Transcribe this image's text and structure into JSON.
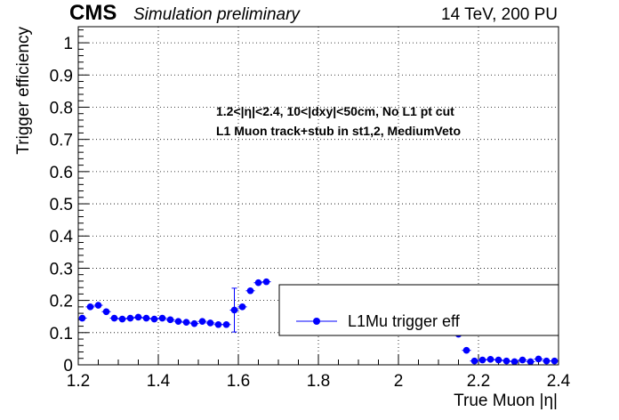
{
  "header": {
    "experiment": "CMS",
    "subtitle": "Simulation preliminary",
    "conditions": "14 TeV, 200 PU"
  },
  "annotations": [
    "1.2<|η|<2.4, 10<|dxy|<50cm, No L1 pt cut",
    "L1 Muon track+stub in st1,2, MediumVeto"
  ],
  "chart_data": {
    "type": "scatter",
    "xlabel": "True Muon |η|",
    "ylabel": "Trigger efficiency",
    "xlim": [
      1.2,
      2.4
    ],
    "ylim": [
      0,
      1.05
    ],
    "grid": true,
    "x_ticks": [
      "1.2",
      "1.4",
      "1.6",
      "1.8",
      "2",
      "2.2",
      "2.4"
    ],
    "y_ticks": [
      "0",
      "0.1",
      "0.2",
      "0.3",
      "0.4",
      "0.5",
      "0.6",
      "0.7",
      "0.8",
      "0.9",
      "1"
    ],
    "legend": {
      "placement": "lower-right",
      "entries": [
        "L1Mu trigger eff"
      ]
    },
    "series": [
      {
        "name": "L1Mu trigger eff",
        "color": "#0000ff",
        "points": [
          {
            "x": 1.21,
            "y": 0.145,
            "err": 0.008
          },
          {
            "x": 1.23,
            "y": 0.18,
            "err": 0.008
          },
          {
            "x": 1.25,
            "y": 0.185,
            "err": 0.008
          },
          {
            "x": 1.27,
            "y": 0.165,
            "err": 0.008
          },
          {
            "x": 1.29,
            "y": 0.145,
            "err": 0.008
          },
          {
            "x": 1.31,
            "y": 0.142,
            "err": 0.008
          },
          {
            "x": 1.33,
            "y": 0.145,
            "err": 0.008
          },
          {
            "x": 1.35,
            "y": 0.148,
            "err": 0.008
          },
          {
            "x": 1.37,
            "y": 0.145,
            "err": 0.008
          },
          {
            "x": 1.39,
            "y": 0.142,
            "err": 0.008
          },
          {
            "x": 1.41,
            "y": 0.145,
            "err": 0.008
          },
          {
            "x": 1.43,
            "y": 0.14,
            "err": 0.008
          },
          {
            "x": 1.45,
            "y": 0.135,
            "err": 0.008
          },
          {
            "x": 1.47,
            "y": 0.132,
            "err": 0.008
          },
          {
            "x": 1.49,
            "y": 0.128,
            "err": 0.008
          },
          {
            "x": 1.51,
            "y": 0.135,
            "err": 0.008
          },
          {
            "x": 1.53,
            "y": 0.13,
            "err": 0.008
          },
          {
            "x": 1.55,
            "y": 0.125,
            "err": 0.008
          },
          {
            "x": 1.57,
            "y": 0.125,
            "err": 0.008
          },
          {
            "x": 1.59,
            "y": 0.17,
            "err": 0.068
          },
          {
            "x": 1.61,
            "y": 0.18,
            "err": 0.008
          },
          {
            "x": 1.63,
            "y": 0.23,
            "err": 0.008
          },
          {
            "x": 1.65,
            "y": 0.255,
            "err": 0.008
          },
          {
            "x": 1.67,
            "y": 0.258,
            "err": 0.008
          },
          {
            "x": 2.15,
            "y": 0.095,
            "err": 0.008
          },
          {
            "x": 2.17,
            "y": 0.045,
            "err": 0.008
          },
          {
            "x": 2.19,
            "y": 0.012,
            "err": 0.006
          },
          {
            "x": 2.21,
            "y": 0.015,
            "err": 0.006
          },
          {
            "x": 2.23,
            "y": 0.017,
            "err": 0.006
          },
          {
            "x": 2.25,
            "y": 0.015,
            "err": 0.006
          },
          {
            "x": 2.27,
            "y": 0.012,
            "err": 0.006
          },
          {
            "x": 2.29,
            "y": 0.01,
            "err": 0.006
          },
          {
            "x": 2.31,
            "y": 0.015,
            "err": 0.006
          },
          {
            "x": 2.33,
            "y": 0.01,
            "err": 0.006
          },
          {
            "x": 2.35,
            "y": 0.018,
            "err": 0.006
          },
          {
            "x": 2.37,
            "y": 0.012,
            "err": 0.006
          },
          {
            "x": 2.39,
            "y": 0.012,
            "err": 0.006
          }
        ]
      }
    ]
  }
}
